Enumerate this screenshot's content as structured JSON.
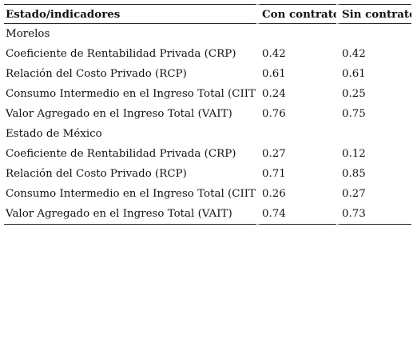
{
  "table": {
    "headers": [
      "Estado/indicadores",
      "Con contrato",
      "Sin contrato"
    ],
    "rows": [
      {
        "label": "Morelos",
        "con": "",
        "sin": ""
      },
      {
        "label": "Coeficiente de Rentabilidad Privada (CRP)",
        "con": "0.42",
        "sin": "0.42"
      },
      {
        "label": "Relación del Costo Privado (RCP)",
        "con": "0.61",
        "sin": "0.61"
      },
      {
        "label": "Consumo Intermedio en el Ingreso Total (CIIT)",
        "con": "0.24",
        "sin": "0.25"
      },
      {
        "label": "Valor Agregado en el Ingreso Total (VAIT)",
        "con": "0.76",
        "sin": "0.75"
      },
      {
        "label": "Estado de México",
        "con": "",
        "sin": ""
      },
      {
        "label": "Coeficiente de Rentabilidad Privada (CRP)",
        "con": "0.27",
        "sin": "0.12"
      },
      {
        "label": "Relación del Costo Privado (RCP)",
        "con": "0.71",
        "sin": "0.85"
      },
      {
        "label": "Consumo Intermedio en el Ingreso Total (CIIT)",
        "con": "0.26",
        "sin": "0.27"
      },
      {
        "label": "Valor Agregado en el Ingreso Total (VAIT)",
        "con": "0.74",
        "sin": "0.73"
      }
    ]
  }
}
